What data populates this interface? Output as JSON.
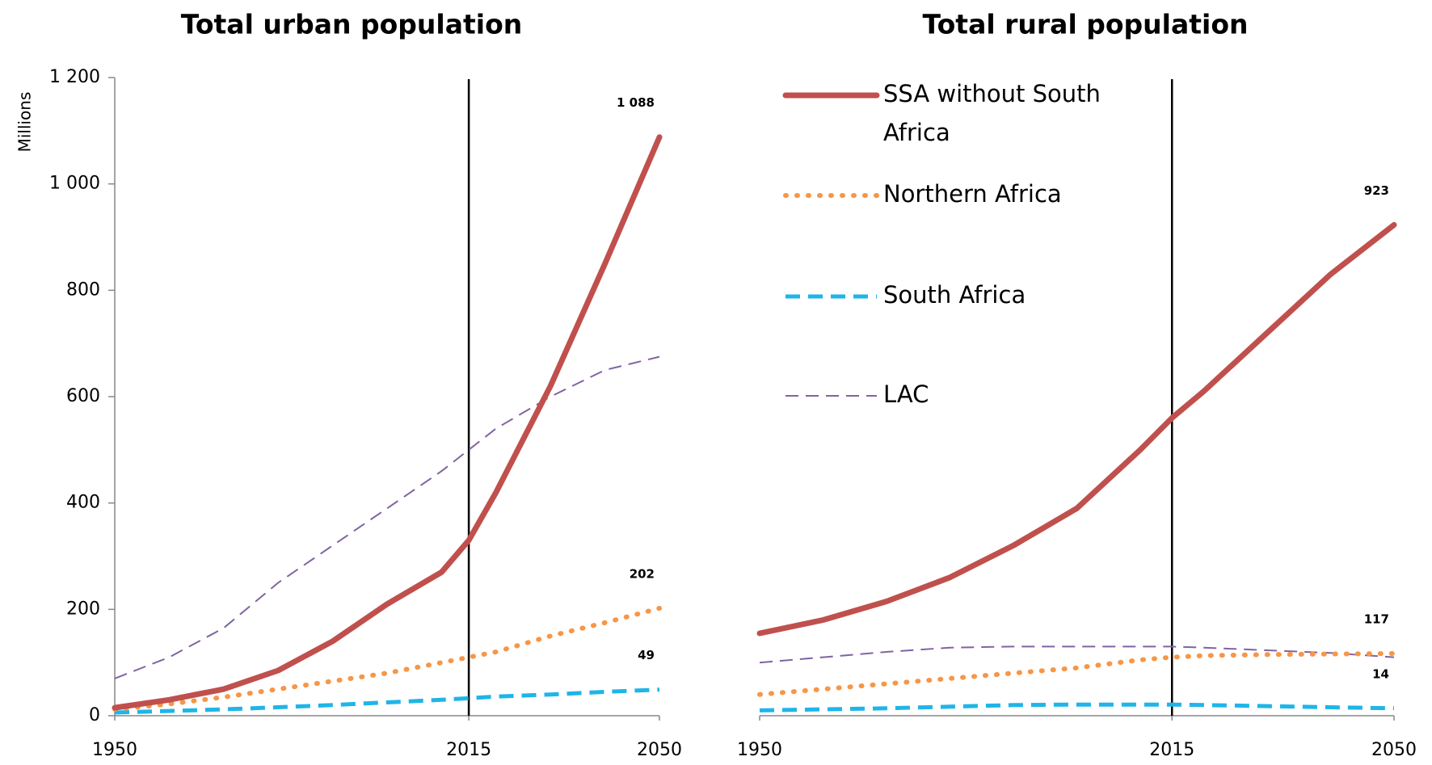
{
  "chart_data": [
    {
      "type": "line",
      "title": "Total urban population",
      "y_label": "Millions",
      "x": [
        1950,
        1960,
        1970,
        1980,
        1990,
        2000,
        2010,
        2015,
        2020,
        2030,
        2040,
        2050
      ],
      "xlim": [
        1950,
        2050
      ],
      "xticks": [
        1950,
        2015,
        2050
      ],
      "ylim": [
        0,
        1200
      ],
      "yticks": [
        0,
        200,
        400,
        600,
        800,
        {
          "value": 1000,
          "label": "1 000"
        },
        {
          "value": 1200,
          "label": "1 200"
        }
      ],
      "vline": 2015,
      "series": [
        {
          "name": "SSA without South Africa",
          "color": "#c0504d",
          "style": "solid",
          "values": [
            15,
            30,
            50,
            85,
            140,
            210,
            270,
            330,
            420,
            620,
            850,
            1088
          ],
          "value_labels": [
            null,
            null,
            null,
            null,
            null,
            null,
            null,
            null,
            null,
            null,
            null,
            "1 088"
          ]
        },
        {
          "name": "Northern Africa",
          "color": "#f79646",
          "style": "dotted",
          "values": [
            12,
            22,
            35,
            50,
            65,
            80,
            100,
            110,
            120,
            150,
            175,
            202
          ],
          "value_labels": [
            null,
            null,
            null,
            null,
            null,
            null,
            null,
            null,
            null,
            null,
            null,
            "202"
          ]
        },
        {
          "name": "South Africa",
          "color": "#1fb5e8",
          "style": "dashed",
          "values": [
            6,
            9,
            12,
            16,
            20,
            25,
            30,
            33,
            36,
            40,
            45,
            49
          ],
          "value_labels": [
            null,
            null,
            null,
            null,
            null,
            null,
            null,
            null,
            null,
            null,
            null,
            "49"
          ]
        },
        {
          "name": "LAC",
          "color": "#8064a2",
          "style": "longdash",
          "values": [
            70,
            110,
            165,
            250,
            320,
            390,
            460,
            500,
            540,
            600,
            650,
            675
          ]
        }
      ]
    },
    {
      "type": "line",
      "title": "Total rural population",
      "x": [
        1950,
        1960,
        1970,
        1980,
        1990,
        2000,
        2010,
        2015,
        2020,
        2030,
        2040,
        2050
      ],
      "xlim": [
        1950,
        2050
      ],
      "xticks": [
        1950,
        2015,
        2050
      ],
      "ylim": [
        0,
        1200
      ],
      "vline": 2015,
      "series": [
        {
          "name": "SSA without South Africa",
          "color": "#c0504d",
          "style": "solid",
          "values": [
            155,
            180,
            215,
            260,
            320,
            390,
            500,
            560,
            610,
            720,
            830,
            923
          ],
          "value_labels": [
            null,
            null,
            null,
            null,
            null,
            null,
            null,
            null,
            null,
            null,
            null,
            "923"
          ]
        },
        {
          "name": "Northern Africa",
          "color": "#f79646",
          "style": "dotted",
          "values": [
            40,
            50,
            60,
            70,
            80,
            90,
            105,
            110,
            113,
            115,
            116,
            117
          ],
          "value_labels": [
            null,
            null,
            null,
            null,
            null,
            null,
            null,
            null,
            null,
            null,
            null,
            "117"
          ]
        },
        {
          "name": "South Africa",
          "color": "#1fb5e8",
          "style": "dashed",
          "values": [
            10,
            12,
            14,
            17,
            20,
            21,
            21,
            21,
            20,
            18,
            16,
            14
          ],
          "value_labels": [
            null,
            null,
            null,
            null,
            null,
            null,
            null,
            null,
            null,
            null,
            null,
            "14"
          ]
        },
        {
          "name": "LAC",
          "color": "#8064a2",
          "style": "longdash",
          "values": [
            100,
            110,
            120,
            128,
            130,
            130,
            130,
            130,
            128,
            123,
            118,
            110
          ]
        }
      ]
    }
  ]
}
